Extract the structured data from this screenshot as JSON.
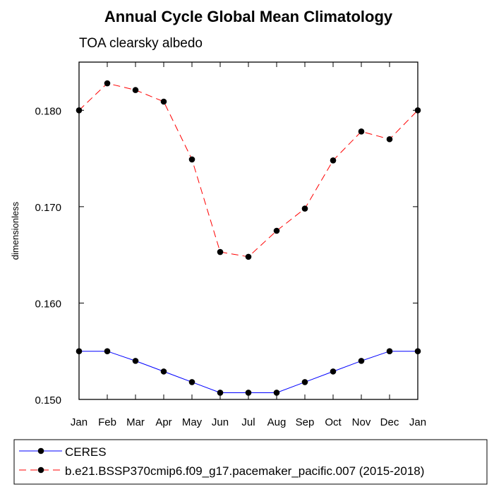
{
  "chart_data": {
    "type": "line",
    "title": "Annual Cycle Global Mean Climatology",
    "subtitle": "TOA clearsky albedo",
    "xlabel": "",
    "ylabel": "dimensionless",
    "categories": [
      "Jan",
      "Feb",
      "Mar",
      "Apr",
      "May",
      "Jun",
      "Jul",
      "Aug",
      "Sep",
      "Oct",
      "Nov",
      "Dec",
      "Jan"
    ],
    "ylim": [
      0.15,
      0.185
    ],
    "yticks": [
      0.15,
      0.16,
      0.17,
      0.18
    ],
    "ytick_labels": [
      "0.150",
      "0.160",
      "0.170",
      "0.180"
    ],
    "grid": false,
    "legend_placement": "bottom",
    "series": [
      {
        "name": "CERES",
        "color": "#0000ff",
        "line_style": "solid",
        "marker": "filled-circle",
        "values": [
          0.155,
          0.155,
          0.154,
          0.1529,
          0.1518,
          0.1507,
          0.1507,
          0.1507,
          0.1518,
          0.1529,
          0.154,
          0.155,
          0.155
        ]
      },
      {
        "name": "b.e21.BSSP370cmip6.f09_g17.pacemaker_pacific.007 (2015-2018)",
        "color": "#ff0000",
        "line_style": "dashed",
        "marker": "filled-circle",
        "values": [
          0.18,
          0.1828,
          0.1821,
          0.1809,
          0.1749,
          0.1653,
          0.1648,
          0.1675,
          0.1698,
          0.1748,
          0.1778,
          0.177,
          0.18
        ]
      }
    ]
  }
}
